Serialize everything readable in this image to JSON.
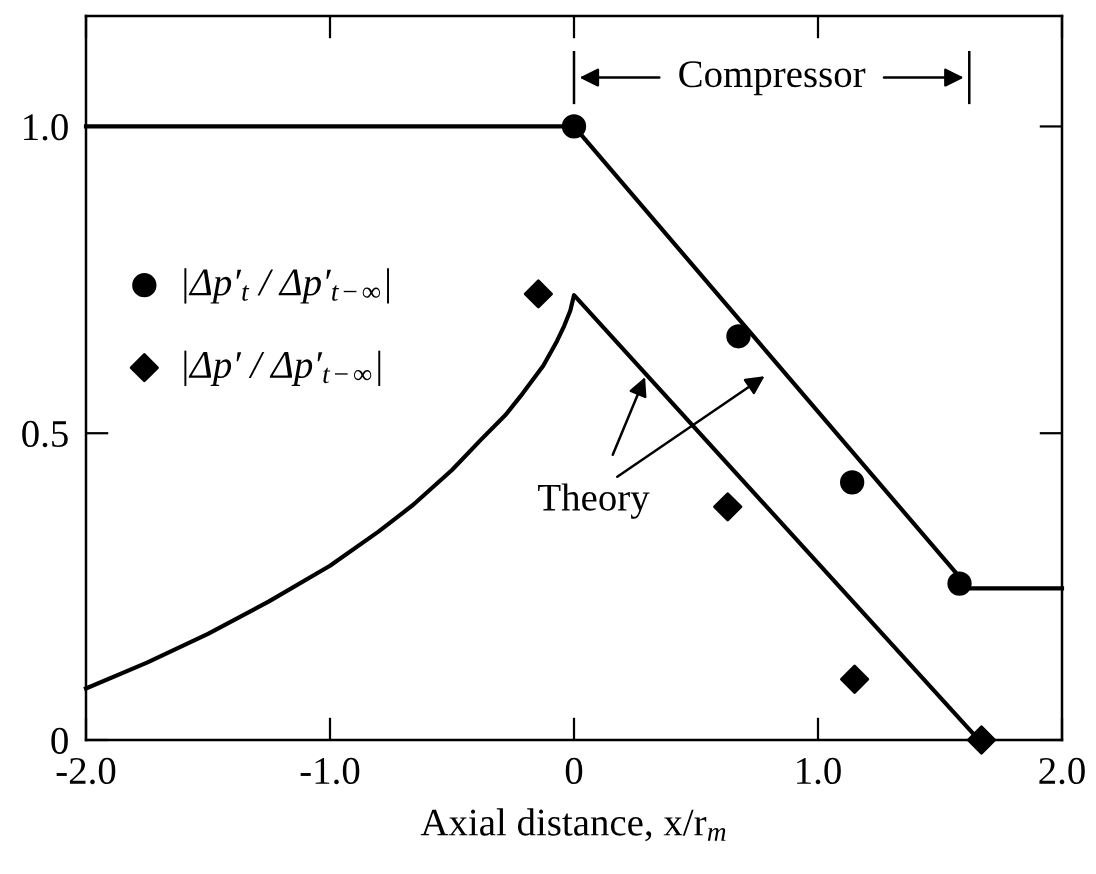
{
  "chart_data": {
    "type": "line",
    "xlabel": "Axial distance, x/r$_{m}$",
    "xlim": [
      -2.0,
      2.0
    ],
    "ylim": [
      0,
      1.18
    ],
    "xticks": [
      {
        "value": -2.0,
        "label": "-2.0"
      },
      {
        "value": -1.0,
        "label": "-1.0"
      },
      0,
      {
        "value": 1.0,
        "label": "1.0"
      },
      {
        "value": 2.0,
        "label": "2.0"
      }
    ],
    "yticks": [
      0,
      0.5,
      {
        "value": 1.0,
        "label": "1.0"
      }
    ],
    "grid": false,
    "legend": "left",
    "series": [
      {
        "color": "#000000",
        "x": [
          -2.0,
          0,
          1.62,
          2.0
        ],
        "values": [
          1.0,
          1.0,
          0.247,
          0.247
        ]
      },
      {
        "color": "#000000",
        "x": [
          -2.0,
          -1.75,
          -1.5,
          -1.25,
          -1.0,
          -0.8,
          -0.66,
          -0.5,
          -0.38,
          -0.28,
          -0.21,
          -0.126,
          -0.07,
          -0.04,
          -0.015,
          0,
          1.66
        ],
        "values": [
          0.084,
          0.126,
          0.173,
          0.226,
          0.284,
          0.34,
          0.383,
          0.44,
          0.49,
          0.53,
          0.565,
          0.61,
          0.65,
          0.675,
          0.7,
          0.725,
          0
        ]
      },
      {
        "type": "scatter",
        "marker": "circle",
        "name": "|Δp′$_{t}$ / Δp′$_{t−∞}$|",
        "color": "#000000",
        "x": [
          0,
          0.674,
          1.14,
          1.58
        ],
        "values": [
          1.0,
          0.658,
          0.42,
          0.255
        ]
      },
      {
        "type": "scatter",
        "marker": "diamond",
        "name": "|Δp′ / Δp′$_{t−∞}$|",
        "color": "#000000",
        "x": [
          -0.146,
          0.63,
          1.15,
          1.67
        ],
        "values": [
          0.727,
          0.38,
          0.099,
          0
        ]
      }
    ],
    "annotations": [
      "Compressor",
      {
        "text": "Theory",
        "x": 0.3,
        "y": 0.6
      }
    ]
  }
}
